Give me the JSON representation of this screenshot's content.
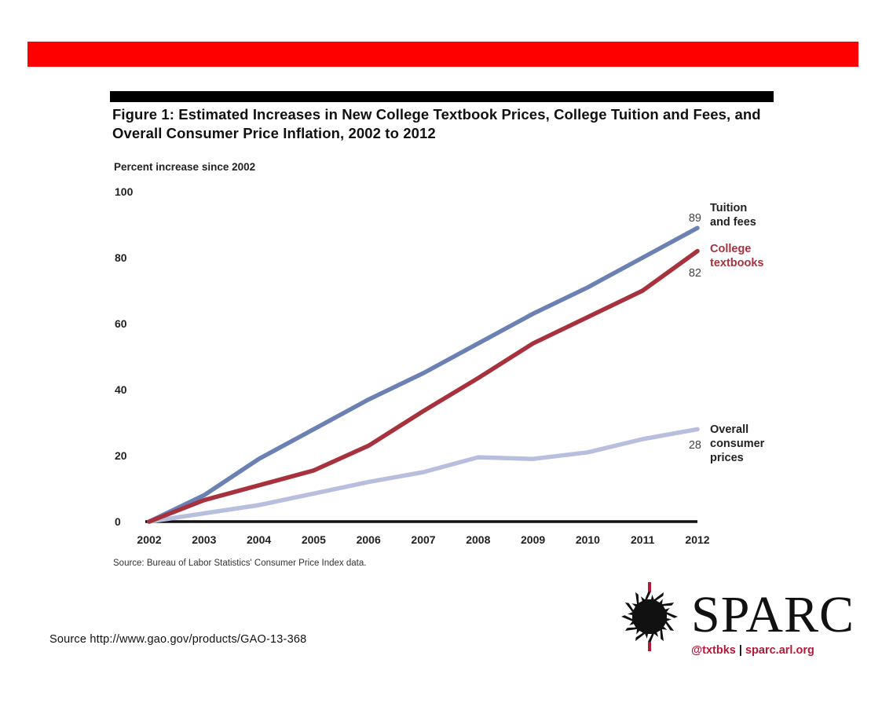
{
  "figure_title": "Figure 1: Estimated Increases in New College Textbook Prices, College Tuition and Fees, and Overall Consumer Price Inflation, 2002 to 2012",
  "source_note": "Source: Bureau of Labor Statistics' Consumer Price Index data.",
  "source_url": "Source http://www.gao.gov/products/GAO-13-368",
  "brand": {
    "name": "SPARC",
    "handle": "@txtbks",
    "separator": "|",
    "site": "sparc.arl.org"
  },
  "colors": {
    "top_bar": "#ff0000",
    "tuition": "#6b80b3",
    "textbooks": "#a7323d",
    "cpi": "#b8bedd",
    "brand_accent": "#b5193a"
  },
  "chart_data": {
    "type": "line",
    "title": "Figure 1: Estimated Increases in New College Textbook Prices, College Tuition and Fees, and Overall Consumer Price Inflation, 2002 to 2012",
    "ylabel": "Percent increase since 2002",
    "xlabel": "",
    "ylim": [
      0,
      100
    ],
    "yticks": [
      0,
      20,
      40,
      60,
      80,
      100
    ],
    "x": [
      "2002",
      "2003",
      "2004",
      "2005",
      "2006",
      "2007",
      "2008",
      "2009",
      "2010",
      "2011",
      "2012"
    ],
    "grid": false,
    "series": [
      {
        "id": "tuition",
        "name": "Tuition and fees",
        "label_lines": [
          "Tuition",
          "and fees"
        ],
        "end_label": "89",
        "color": "#6b80b3",
        "values": [
          0,
          8,
          19,
          28,
          37,
          45,
          54,
          63,
          71,
          80,
          89
        ]
      },
      {
        "id": "textbooks",
        "name": "College textbooks",
        "label_lines": [
          "College",
          "textbooks"
        ],
        "end_label": "82",
        "color": "#a7323d",
        "values": [
          0,
          6.5,
          11,
          15.5,
          23,
          33.5,
          43.5,
          54,
          62,
          70,
          82
        ]
      },
      {
        "id": "cpi",
        "name": "Overall consumer prices",
        "label_lines": [
          "Overall",
          "consumer",
          "prices"
        ],
        "end_label": "28",
        "color": "#b8bedd",
        "values": [
          0,
          2.5,
          5,
          8.5,
          12,
          15,
          19.5,
          19,
          21,
          25,
          28
        ]
      }
    ]
  }
}
